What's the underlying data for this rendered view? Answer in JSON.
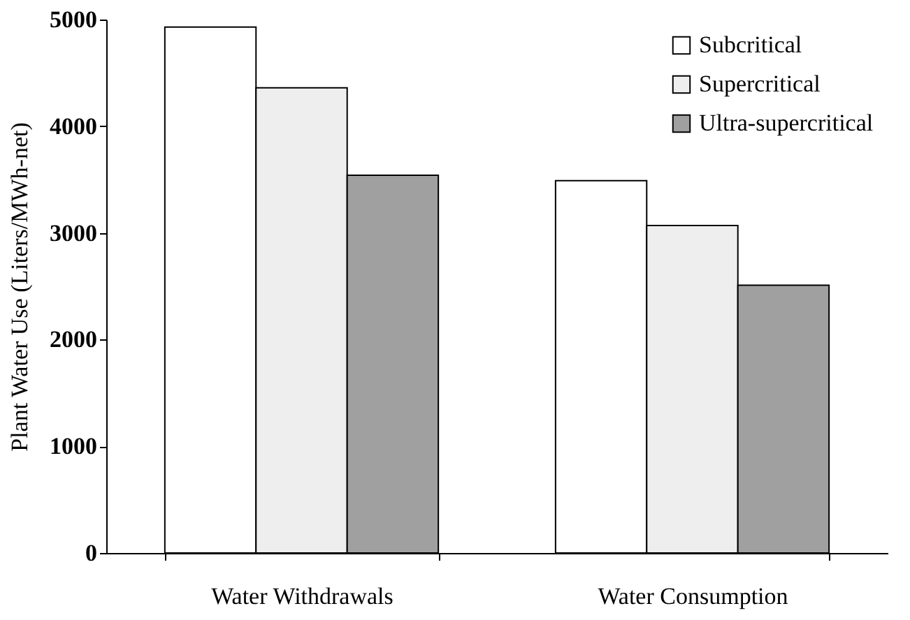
{
  "chart_data": {
    "type": "bar",
    "ylabel": "Plant Water Use (Liters/MWh-net)",
    "categories": [
      "Water Withdrawals",
      "Water Consumption"
    ],
    "series": [
      {
        "name": "Subcritical",
        "color": "#ffffff",
        "values": [
          4930,
          3490
        ]
      },
      {
        "name": "Supercritical",
        "color": "#eeeeee",
        "values": [
          4360,
          3070
        ]
      },
      {
        "name": "Ultra-supercritical",
        "color": "#a0a0a0",
        "values": [
          3540,
          2510
        ]
      }
    ],
    "ylim": [
      0,
      5000
    ],
    "yticks": [
      0,
      1000,
      2000,
      3000,
      4000,
      5000
    ],
    "grid": false,
    "legend": "top right"
  }
}
